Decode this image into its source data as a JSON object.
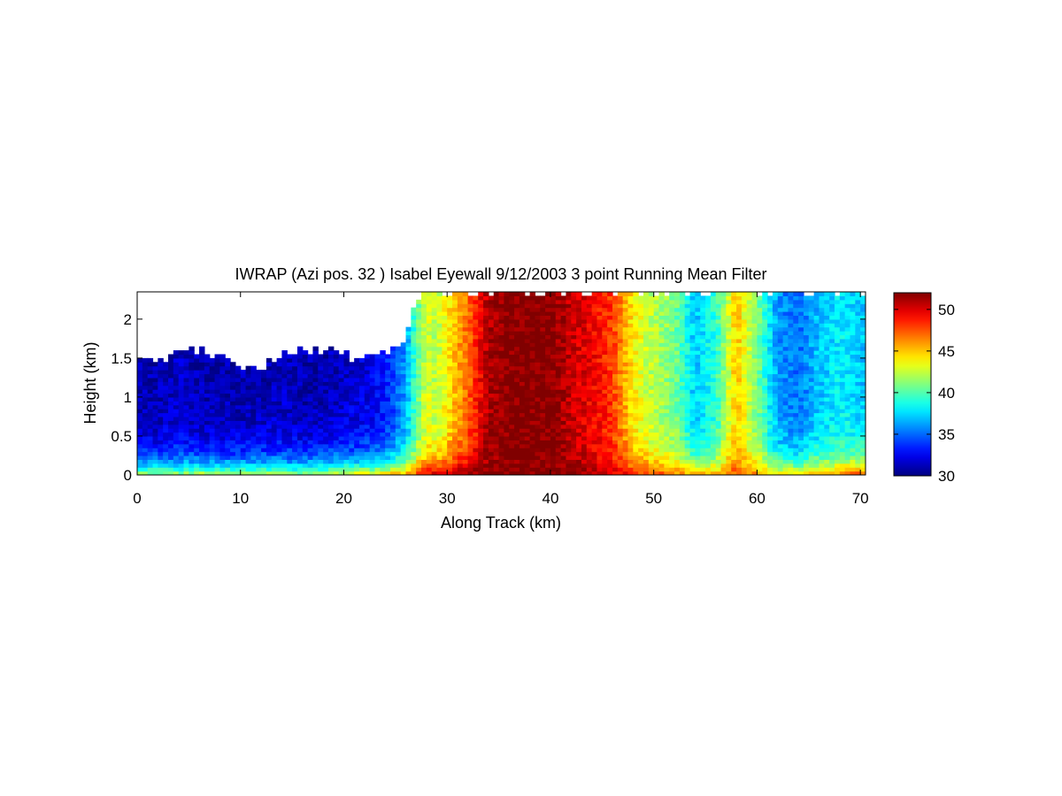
{
  "chart_data": {
    "type": "heatmap",
    "title": "IWRAP (Azi pos. 32 ) Isabel Eyewall 9/12/2003 3 point Running Mean Filter",
    "xlabel": "Along Track (km)",
    "ylabel": "Height (km)",
    "xlim": [
      0,
      70.5
    ],
    "ylim": [
      0,
      2.35
    ],
    "xticks": [
      0,
      10,
      20,
      30,
      40,
      50,
      60,
      70
    ],
    "yticks": [
      0,
      0.5,
      1,
      1.5,
      2
    ],
    "xtick_labels": [
      "0",
      "10",
      "20",
      "30",
      "40",
      "50",
      "60",
      "70"
    ],
    "ytick_labels": [
      "0",
      "0.5",
      "1",
      "1.5",
      "2"
    ],
    "colorbar": {
      "min": 30,
      "max": 52,
      "ticks": [
        30,
        35,
        40,
        45,
        50
      ],
      "tick_labels": [
        "30",
        "35",
        "40",
        "45",
        "50"
      ],
      "colormap": "jet"
    },
    "grid": false,
    "profile_x_km": [
      0,
      2,
      4,
      6,
      8,
      10,
      12,
      14,
      16,
      18,
      20,
      22,
      24,
      26,
      27,
      28,
      29,
      30,
      32,
      34,
      36,
      38,
      40,
      42,
      44,
      46,
      48,
      50,
      52,
      54,
      56,
      58,
      60,
      62,
      64,
      66,
      68,
      70.5
    ],
    "reflectivity_aloft": [
      31,
      31,
      31.5,
      31,
      31,
      31,
      31,
      31.5,
      31,
      31,
      31.5,
      32,
      33,
      36,
      40,
      43,
      42,
      44,
      47,
      51,
      52,
      52,
      52,
      50.5,
      49.5,
      48,
      44,
      42,
      41,
      37,
      39,
      45,
      41,
      36,
      35,
      37,
      38,
      37
    ],
    "reflectivity_near_surface": [
      42,
      42,
      42,
      43,
      42,
      42,
      43,
      42,
      42,
      43,
      44,
      44,
      45,
      46,
      48,
      50,
      51,
      51,
      52,
      52,
      52,
      52,
      52,
      52,
      51,
      50,
      49,
      48,
      47,
      46,
      46,
      48,
      46,
      45,
      45,
      46,
      47,
      48
    ],
    "echo_top_km": [
      1.55,
      1.45,
      1.6,
      1.6,
      1.5,
      1.4,
      1.4,
      1.55,
      1.6,
      1.6,
      1.55,
      1.5,
      1.6,
      1.7,
      2.3,
      2.35,
      2.35,
      2.35,
      2.35,
      2.35,
      2.35,
      2.35,
      2.35,
      2.35,
      2.35,
      2.35,
      2.35,
      2.35,
      2.35,
      2.35,
      2.35,
      2.35,
      2.35,
      2.35,
      2.35,
      2.35,
      2.35,
      2.35
    ]
  }
}
